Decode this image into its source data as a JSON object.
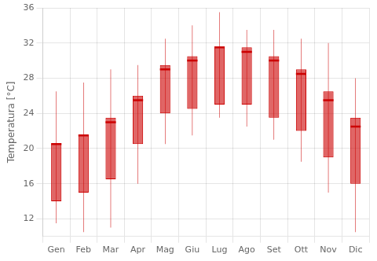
{
  "chart_data": {
    "type": "box",
    "categories": [
      "Gen",
      "Feb",
      "Mar",
      "Apr",
      "Mag",
      "Giu",
      "Lug",
      "Ago",
      "Set",
      "Ott",
      "Nov",
      "Dic"
    ],
    "whisker_low": [
      11.5,
      10.5,
      11.0,
      16.0,
      20.5,
      21.5,
      23.5,
      22.5,
      21.0,
      18.5,
      15.0,
      10.5
    ],
    "q1": [
      14.0,
      15.0,
      16.5,
      20.5,
      24.0,
      24.5,
      25.0,
      25.0,
      23.5,
      22.0,
      19.0,
      16.0
    ],
    "median": [
      20.5,
      21.5,
      23.0,
      25.5,
      29.0,
      30.0,
      31.5,
      31.0,
      30.0,
      28.5,
      25.5,
      22.5
    ],
    "q3": [
      20.5,
      21.5,
      23.5,
      26.0,
      29.5,
      30.5,
      31.5,
      31.5,
      30.5,
      29.0,
      26.5,
      23.5
    ],
    "whisker_high": [
      26.5,
      27.5,
      29.0,
      29.5,
      32.5,
      34.0,
      35.5,
      33.5,
      33.5,
      32.5,
      32.0,
      28.0
    ],
    "color": "#cc0000",
    "ylabel": "Temperatura [°C]",
    "ylim": [
      10,
      36
    ],
    "yticks": [
      12,
      16,
      20,
      24,
      28,
      32,
      36
    ],
    "grid": true
  }
}
